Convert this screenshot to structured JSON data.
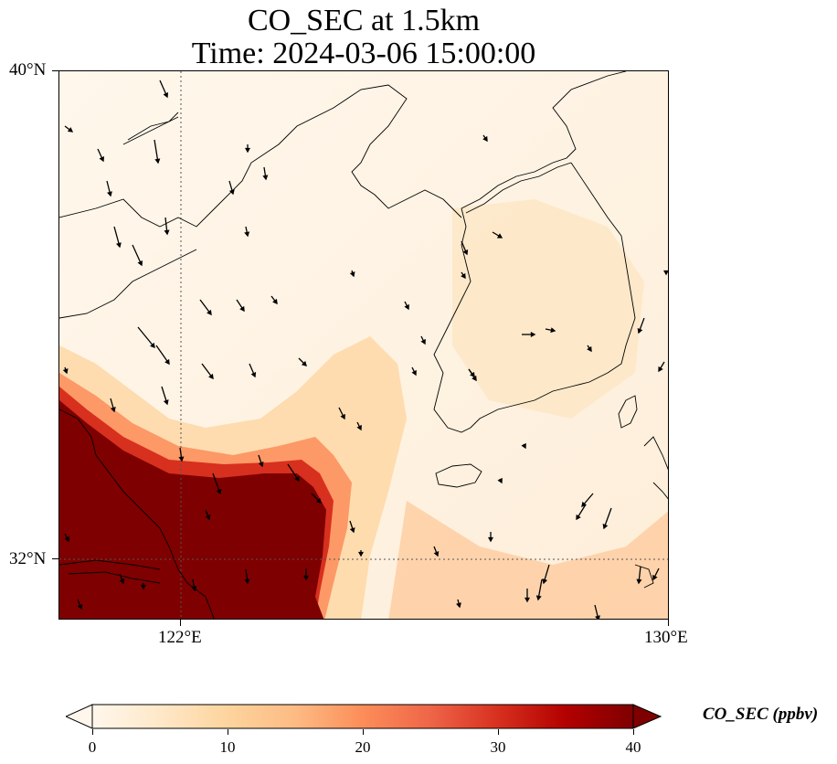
{
  "title": {
    "line1": "CO_SEC at 1.5km",
    "line2": "Time: 2024-03-06 15:00:00"
  },
  "map": {
    "lon_range": [
      120.4,
      130.0
    ],
    "lat_range": [
      31.2,
      40.0
    ],
    "gridlines": {
      "lon": [
        122
      ],
      "lat": [
        32
      ],
      "style": "dotted"
    },
    "lat_ticks": [
      {
        "value": 40,
        "label": "40°N"
      },
      {
        "value": 32,
        "label": "32°N"
      }
    ],
    "lon_ticks": [
      {
        "value": 122,
        "label": "122°E"
      },
      {
        "value": 130,
        "label": "130°E"
      }
    ],
    "wind_vectors": "shown",
    "coastlines": "shown"
  },
  "colorbar": {
    "label": "CO_SEC (ppbv)",
    "min": 0,
    "max": 40,
    "extend": "both",
    "ticks": [
      "0",
      "10",
      "20",
      "30",
      "40"
    ],
    "colormap": [
      "#fff7ec",
      "#fee8c8",
      "#fdd49e",
      "#fdbb84",
      "#fc8d59",
      "#ef6548",
      "#d7301f",
      "#b30000",
      "#7f0000"
    ]
  }
}
